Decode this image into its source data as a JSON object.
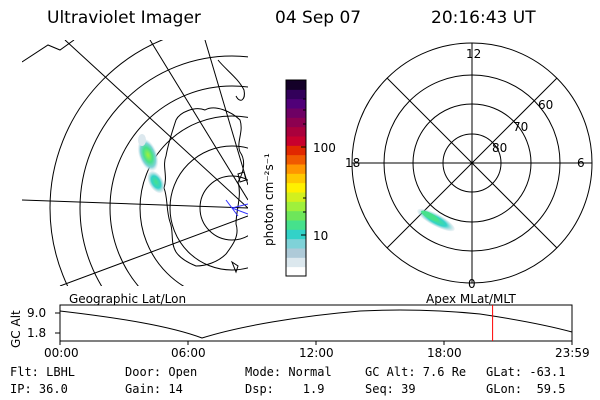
{
  "header": {
    "title": "Ultraviolet Imager",
    "date": "04 Sep 07",
    "time": "20:16:43 UT"
  },
  "colorbar": {
    "unit_label": "photon cm⁻²s⁻¹",
    "ticks": [
      "100",
      "10"
    ],
    "colors": [
      "#ffffff",
      "#dce8ee",
      "#aecad8",
      "#7fd2d8",
      "#32d2c8",
      "#46e18c",
      "#6ee65a",
      "#9ff03c",
      "#d2f01e",
      "#fff000",
      "#ffc800",
      "#ff9600",
      "#f05a00",
      "#e12800",
      "#c8002d",
      "#aa003c",
      "#8c0050",
      "#6e0064",
      "#500078",
      "#32005a",
      "#140028"
    ]
  },
  "polar": {
    "mlt_labels": [
      "12",
      "18",
      "6",
      "0"
    ],
    "lat_labels": [
      "60",
      "70",
      "80"
    ]
  },
  "left_panel_label": "Geographic Lat/Lon",
  "right_panel_label": "Apex MLat/MLT",
  "orbit": {
    "axis_label": "GC Alt",
    "y_ticks": [
      "9.0",
      "1.8"
    ],
    "x_ticks": [
      "00:00",
      "06:00",
      "12:00",
      "18:00",
      "23:59"
    ],
    "current_time_hours": 20.28,
    "marker_color": "#ff0000"
  },
  "footer": {
    "rows": [
      [
        "Flt: LBHL",
        "Door: Open",
        "Mode: Normal",
        "GC Alt: 7.6 Re",
        "GLat: -63.1"
      ],
      [
        "IP: 36.0",
        "Gain: 14",
        "Dsp:    1.9",
        "Seq: 39",
        "GLon:  59.5"
      ]
    ]
  }
}
